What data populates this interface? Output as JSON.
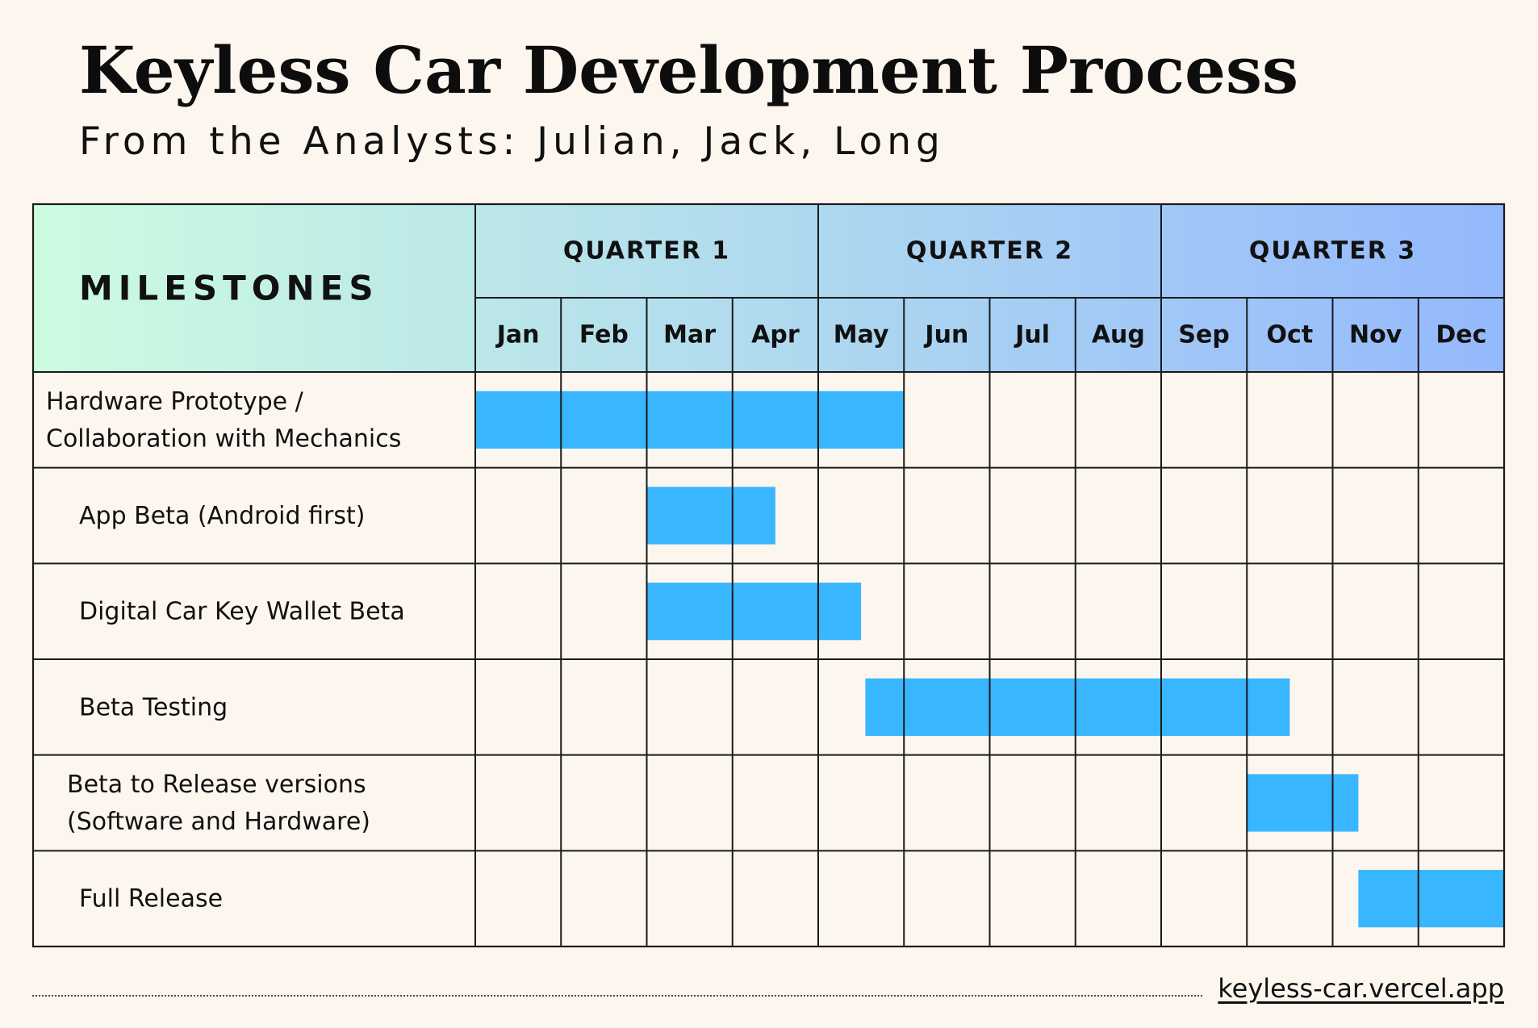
{
  "title": "Keyless Car Development Process",
  "subtitle": "From the Analysts: Julian, Jack, Long",
  "footer": {
    "link": "keyless-car.vercel.app"
  },
  "colors": {
    "background": "#fdf6ef",
    "bar": "#38b6ff",
    "grid": "#1a1a1a",
    "header_gradient_start": "#ccfce0",
    "header_gradient_end": "#94b8fd"
  },
  "chart_data": {
    "type": "gantt",
    "header_label": "MILESTONES",
    "quarters": [
      {
        "label": "QUARTER 1",
        "months": 4
      },
      {
        "label": "QUARTER 2",
        "months": 4
      },
      {
        "label": "QUARTER 3",
        "months": 4
      }
    ],
    "months": [
      "Jan",
      "Feb",
      "Mar",
      "Apr",
      "May",
      "Jun",
      "Jul",
      "Aug",
      "Sep",
      "Oct",
      "Nov",
      "Dec"
    ],
    "tasks": [
      {
        "label": [
          "Hardware Prototype /",
          "Collaboration with Mechanics"
        ],
        "start": 0.0,
        "end": 5.0
      },
      {
        "label": [
          "App Beta (Android first)"
        ],
        "start": 2.0,
        "end": 3.5
      },
      {
        "label": [
          "Digital Car Key Wallet Beta"
        ],
        "start": 2.0,
        "end": 4.5
      },
      {
        "label": [
          "Beta Testing"
        ],
        "start": 4.55,
        "end": 9.5
      },
      {
        "label": [
          "Beta to Release versions",
          "(Software and Hardware)"
        ],
        "start": 9.0,
        "end": 10.3
      },
      {
        "label": [
          "Full Release"
        ],
        "start": 10.3,
        "end": 12.0
      }
    ]
  }
}
